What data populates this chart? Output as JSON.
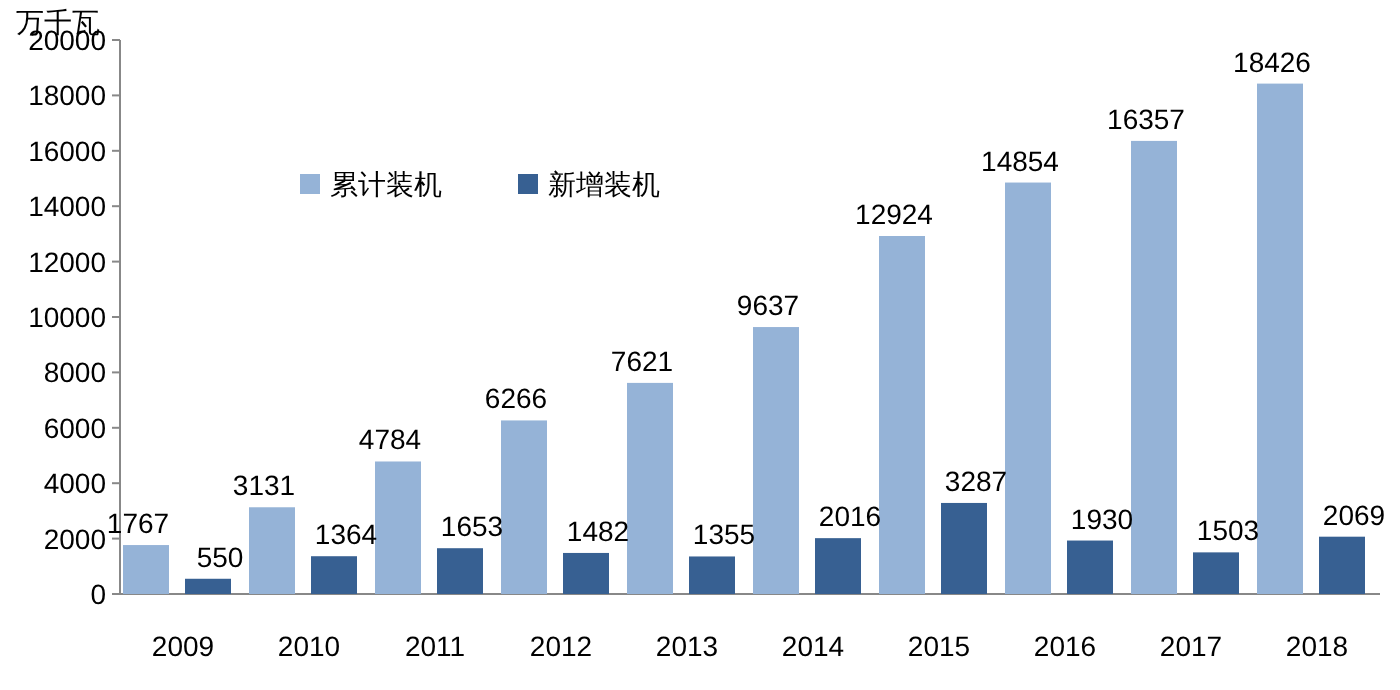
{
  "chart_data": {
    "type": "bar",
    "ylabel": "万千瓦",
    "categories": [
      "2009",
      "2010",
      "2011",
      "2012",
      "2013",
      "2014",
      "2015",
      "2016",
      "2017",
      "2018"
    ],
    "series": [
      {
        "name": "累计装机",
        "color": "#95b3d7",
        "values": [
          1767,
          3131,
          4784,
          6266,
          7621,
          9637,
          12924,
          14854,
          16357,
          18426
        ]
      },
      {
        "name": "新增装机",
        "color": "#376092",
        "values": [
          550,
          1364,
          1653,
          1482,
          1355,
          2016,
          3287,
          1930,
          1503,
          2069
        ]
      }
    ],
    "ylim": [
      0,
      20000
    ],
    "yticks": [
      0,
      2000,
      4000,
      6000,
      8000,
      10000,
      12000,
      14000,
      16000,
      18000,
      20000
    ],
    "data_labels": true,
    "grid": false,
    "legend": "top left"
  }
}
